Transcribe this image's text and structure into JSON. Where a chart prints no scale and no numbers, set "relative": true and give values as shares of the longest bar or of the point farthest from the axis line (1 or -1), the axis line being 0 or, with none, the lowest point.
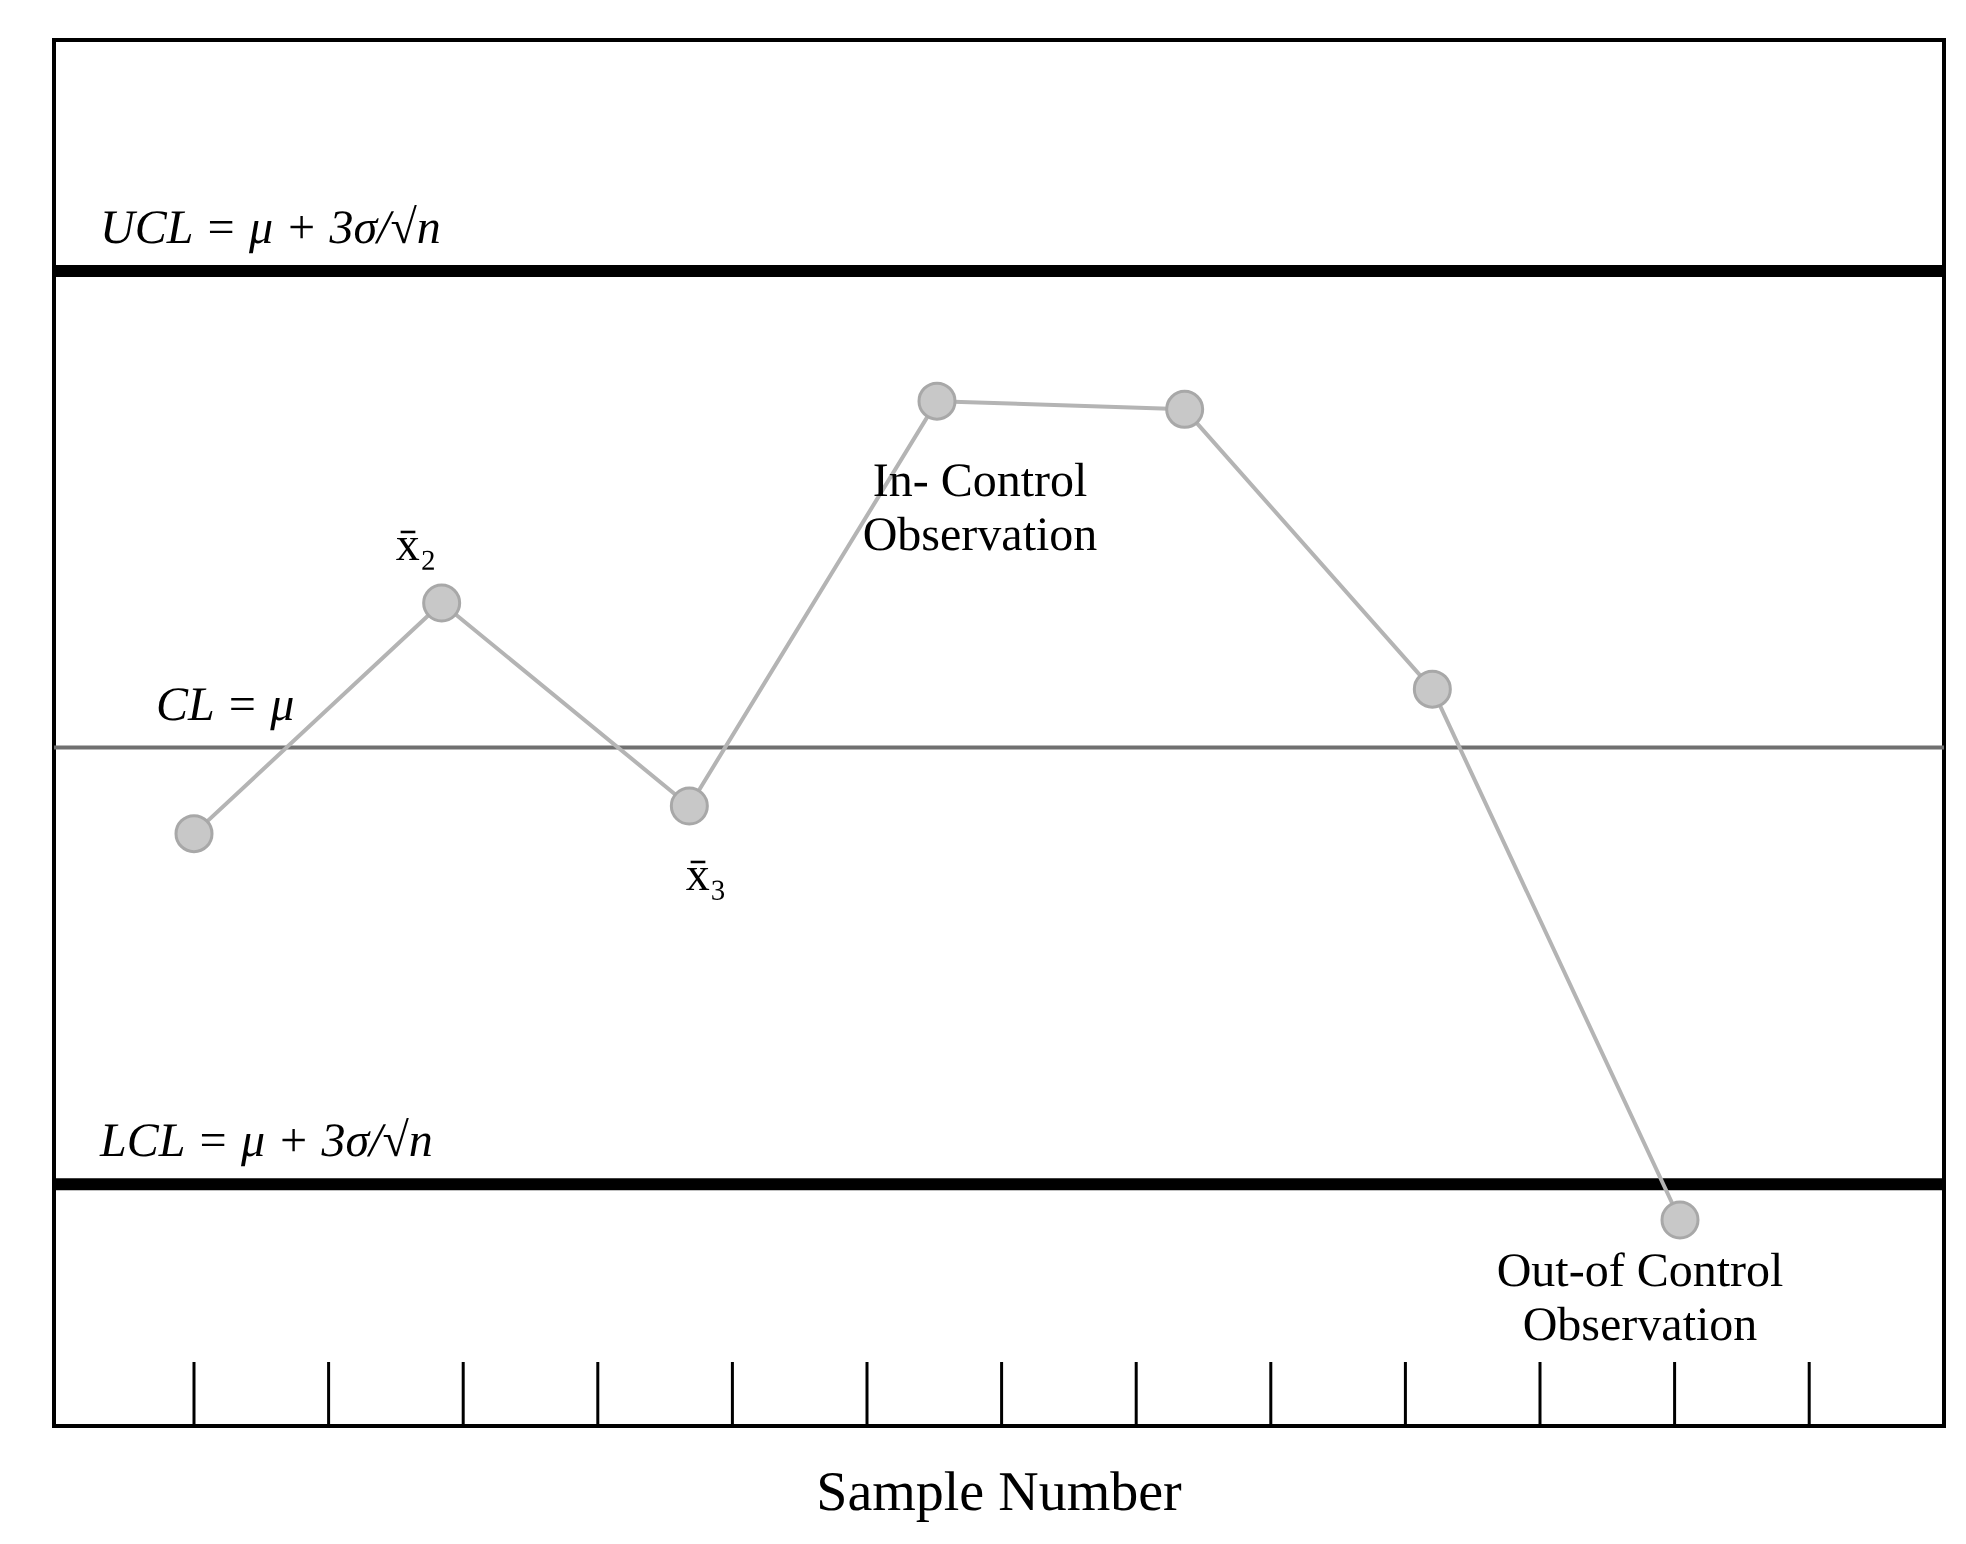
{
  "chart_data": {
    "type": "line",
    "relative": true,
    "xlabel": "Sample Number",
    "categories": [
      null,
      null,
      null,
      null,
      null,
      null,
      null
    ],
    "series": [
      {
        "color": "#b4b4b4",
        "values": [
          0.578,
          0.803,
          0.605,
          1,
          0.992,
          0.719,
          0.201
        ]
      }
    ],
    "marker": "circle",
    "line_style": "solid",
    "ref_lines": [
      {
        "axis": "y",
        "value": 1.127,
        "label": "UCL = μ + 3σ/√n",
        "color": "#000000"
      },
      {
        "axis": "y",
        "value": 0.662,
        "label": "CL = μ",
        "color": "#707070"
      },
      {
        "axis": "y",
        "value": 0.236,
        "label": "LCL = μ + 3σ/√n",
        "color": "#000000"
      }
    ],
    "annotations": [
      "x̄₂",
      "x̄₃",
      "In- Control Observation",
      "Out-of Control Observation"
    ]
  }
}
